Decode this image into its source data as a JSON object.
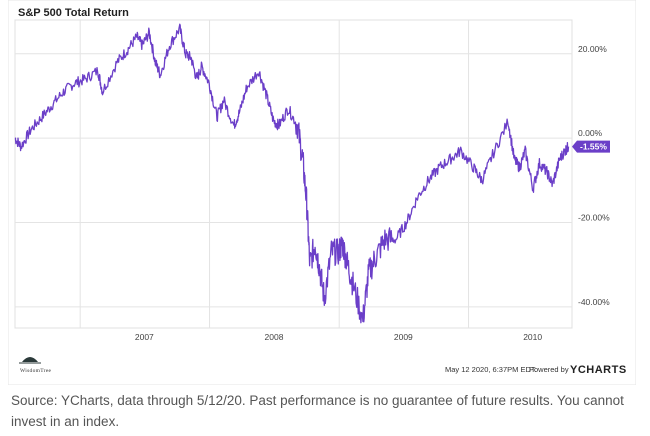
{
  "chart_data": {
    "type": "line",
    "title": "S&P 500 Total Return",
    "xlabel": "",
    "ylabel": "",
    "x_ticks": [
      "2007",
      "2008",
      "2009",
      "2010"
    ],
    "y_ticks": [
      "20.00%",
      "0.00%",
      "-20.00%",
      "-40.00%"
    ],
    "ylim": [
      -45,
      28
    ],
    "grid": true,
    "series": [
      {
        "color": "#6b3fc8",
        "x": [
          "2006-07-01",
          "2006-07-18",
          "2006-08-15",
          "2006-09-15",
          "2006-10-15",
          "2006-11-15",
          "2006-12-15",
          "2007-01-15",
          "2007-02-20",
          "2007-03-05",
          "2007-04-15",
          "2007-05-15",
          "2007-06-10",
          "2007-06-25",
          "2007-07-15",
          "2007-08-01",
          "2007-08-15",
          "2007-09-10",
          "2007-10-09",
          "2007-10-25",
          "2007-11-10",
          "2007-11-26",
          "2007-12-10",
          "2007-12-31",
          "2008-01-22",
          "2008-02-10",
          "2008-03-10",
          "2008-03-25",
          "2008-04-15",
          "2008-05-19",
          "2008-06-10",
          "2008-06-30",
          "2008-07-15",
          "2008-08-10",
          "2008-09-05",
          "2008-09-20",
          "2008-10-01",
          "2008-10-10",
          "2008-10-25",
          "2008-11-05",
          "2008-11-20",
          "2008-12-10",
          "2008-12-31",
          "2009-01-10",
          "2009-01-25",
          "2009-02-10",
          "2009-03-09",
          "2009-03-25",
          "2009-04-15",
          "2009-05-10",
          "2009-06-10",
          "2009-07-10",
          "2009-08-10",
          "2009-09-10",
          "2009-10-10",
          "2009-11-10",
          "2009-12-10",
          "2010-01-15",
          "2010-02-08",
          "2010-03-10",
          "2010-04-23",
          "2010-05-10",
          "2010-05-25",
          "2010-06-10",
          "2010-07-02",
          "2010-07-20",
          "2010-08-10",
          "2010-08-26",
          "2010-09-15",
          "2010-09-30",
          "2010-10-10"
        ],
        "y": [
          0,
          -2,
          2,
          5,
          8,
          11,
          13,
          14,
          16,
          11,
          18,
          21,
          24,
          22,
          25,
          18,
          15,
          22,
          26,
          20,
          19,
          14,
          17,
          13,
          5,
          9,
          3,
          6,
          12,
          16,
          10,
          4,
          3,
          7,
          3,
          -5,
          -15,
          -30,
          -25,
          -30,
          -38,
          -27,
          -27,
          -25,
          -30,
          -35,
          -43,
          -32,
          -28,
          -24,
          -24,
          -20,
          -14,
          -10,
          -7,
          -5,
          -3,
          -7,
          -10,
          -4,
          4,
          -5,
          -7,
          -3,
          -12,
          -6,
          -8,
          -11,
          -5,
          -3,
          -2
        ]
      }
    ],
    "end_label": "-1.55%"
  },
  "footer": {
    "timestamp": "May 12 2020, 6:37PM EDT.",
    "powered_by": "Powered by",
    "brand": "YCHARTS",
    "logo_text": "WisdomTree"
  },
  "caption": "Source: YCharts, data through 5/12/20. Past performance is no guarantee of future results. You cannot invest in an index."
}
